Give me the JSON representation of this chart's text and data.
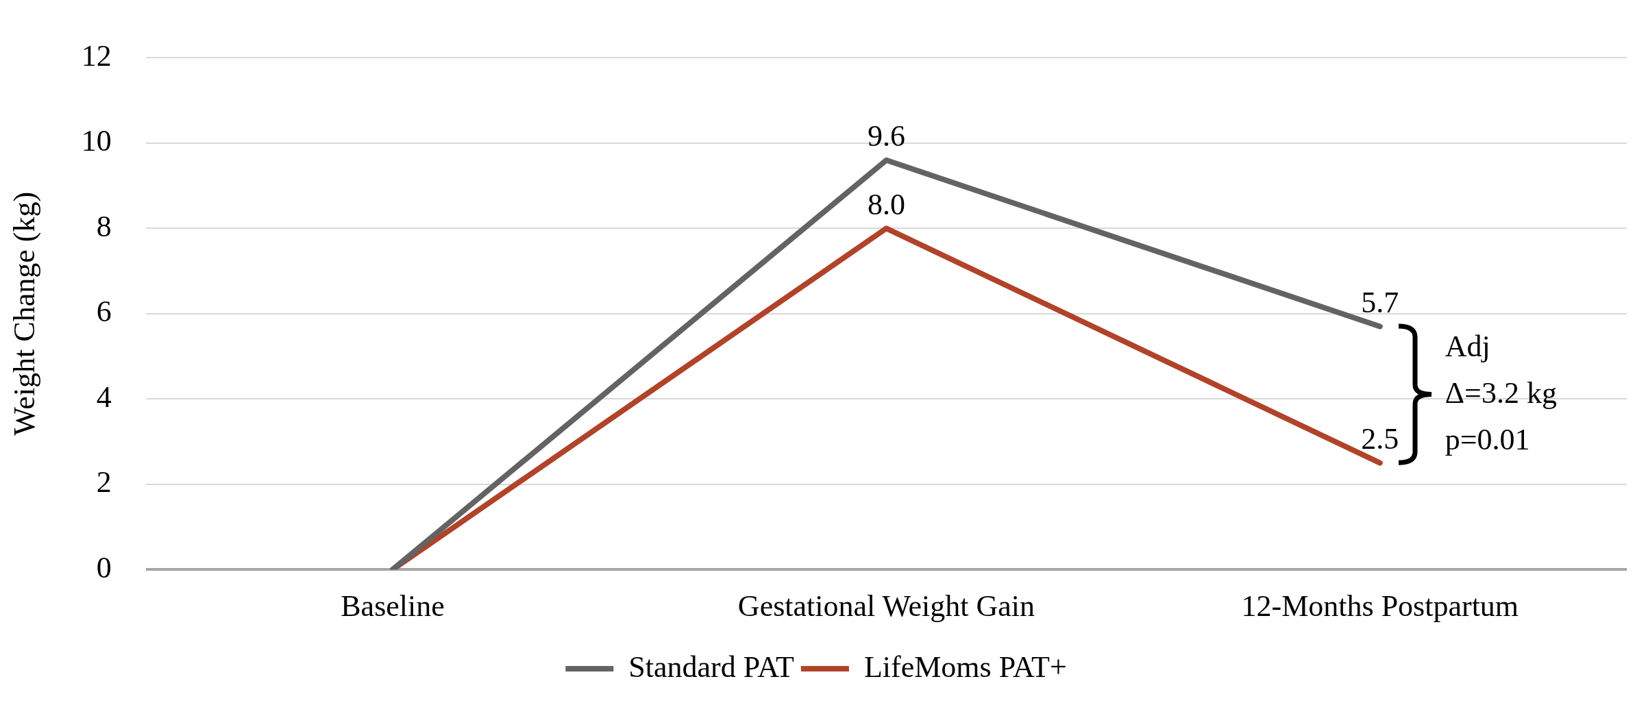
{
  "chart_data": {
    "type": "line",
    "ylabel": "Weight Change (kg)",
    "categories": [
      "Baseline",
      "Gestational Weight Gain",
      "12-Months Postpartum"
    ],
    "series": [
      {
        "name": "Standard PAT",
        "color": "#636363",
        "values": [
          0,
          9.6,
          5.7
        ],
        "value_labels": [
          null,
          "9.6",
          "5.7"
        ]
      },
      {
        "name": "LifeMoms PAT+",
        "color": "#b0432a",
        "values": [
          0,
          8.0,
          2.5
        ],
        "value_labels": [
          null,
          "8.0",
          "2.5"
        ]
      }
    ],
    "ylim": [
      0,
      12
    ],
    "yticks": [
      0,
      2,
      4,
      6,
      8,
      10,
      12
    ],
    "grid": "y",
    "legend": "bottom",
    "marker": "none",
    "line_style": "solid",
    "annotations": [
      "Adj",
      "Δ=3.2 kg",
      "p=0.01"
    ]
  }
}
